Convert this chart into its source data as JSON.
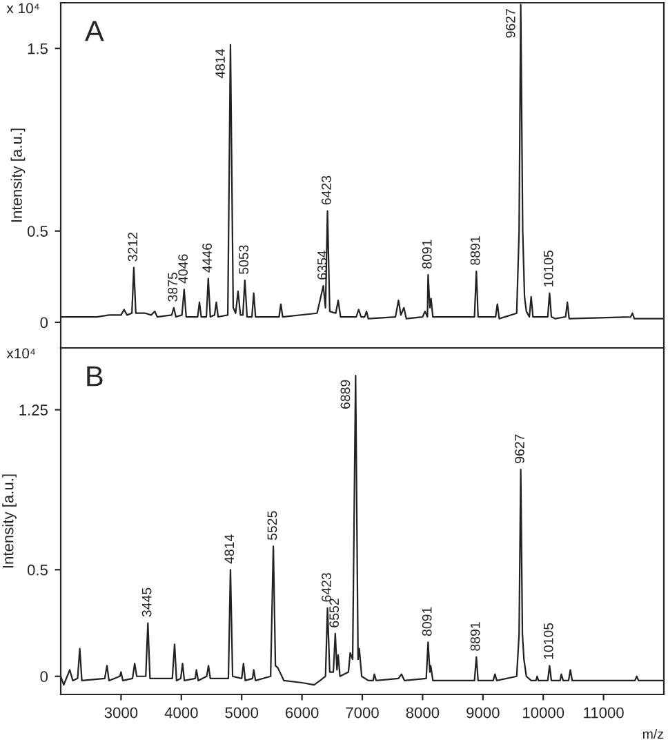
{
  "chart_data": [
    {
      "type": "line",
      "ylabel": "Intensity [a.u.]",
      "xlim": [
        2000,
        12000
      ],
      "ylim": [
        -0.14,
        1.75
      ],
      "yticks": [
        0,
        0.5,
        1.5
      ],
      "tick_labels": "y",
      "grid": false,
      "legend": false,
      "marker": "none",
      "line_style": "solid",
      "annotations": [
        "A",
        "x 10⁴",
        {
          "text": "3212",
          "x": 3212,
          "y": 0.3
        },
        {
          "text": "3875",
          "x": 3875,
          "y": 0.08
        },
        {
          "text": "4046",
          "x": 4046,
          "y": 0.18
        },
        {
          "text": "4446",
          "x": 4446,
          "y": 0.24
        },
        {
          "text": "4814",
          "x": 4814,
          "y": 1.52
        },
        {
          "text": "5053",
          "x": 5053,
          "y": 0.23
        },
        {
          "text": "6354",
          "x": 6354,
          "y": 0.2
        },
        {
          "text": "6423",
          "x": 6423,
          "y": 0.61
        },
        {
          "text": "8091",
          "x": 8091,
          "y": 0.26
        },
        {
          "text": "8891",
          "x": 8891,
          "y": 0.28
        },
        {
          "text": "9627",
          "x": 9627,
          "y": 1.74
        },
        {
          "text": "10105",
          "x": 10105,
          "y": 0.16
        }
      ],
      "series": [
        {
          "color": "#222222",
          "x": [
            2000,
            2600,
            2800,
            3000,
            3050,
            3100,
            3180,
            3212,
            3245,
            3400,
            3500,
            3560,
            3600,
            3840,
            3875,
            3910,
            4010,
            4046,
            4080,
            4270,
            4300,
            4330,
            4415,
            4446,
            4480,
            4550,
            4580,
            4610,
            4770,
            4814,
            4860,
            4900,
            4940,
            4980,
            5020,
            5053,
            5090,
            5170,
            5200,
            5230,
            5620,
            5650,
            5680,
            6250,
            6354,
            6390,
            6423,
            6460,
            6560,
            6600,
            6640,
            6900,
            6940,
            6980,
            7040,
            7070,
            7100,
            7550,
            7600,
            7640,
            7690,
            7730,
            8000,
            8040,
            8080,
            8091,
            8120,
            8140,
            8170,
            8860,
            8891,
            8920,
            9210,
            9240,
            9270,
            9560,
            9600,
            9627,
            9660,
            9690,
            9720,
            9770,
            9800,
            9830,
            10075,
            10105,
            10135,
            10200,
            10370,
            10400,
            10430,
            11450,
            11480,
            11510,
            12000
          ],
          "values": [
            0.03,
            0.03,
            0.04,
            0.04,
            0.07,
            0.04,
            0.05,
            0.3,
            0.05,
            0.05,
            0.04,
            0.06,
            0.03,
            0.04,
            0.08,
            0.03,
            0.04,
            0.18,
            0.03,
            0.03,
            0.11,
            0.03,
            0.03,
            0.24,
            0.03,
            0.04,
            0.11,
            0.03,
            0.04,
            1.52,
            0.08,
            0.05,
            0.17,
            0.04,
            0.04,
            0.23,
            0.03,
            0.03,
            0.16,
            0.03,
            0.03,
            0.1,
            0.03,
            0.05,
            0.2,
            0.08,
            0.61,
            0.06,
            0.05,
            0.12,
            0.03,
            0.03,
            0.07,
            0.03,
            0.03,
            0.06,
            0.02,
            0.03,
            0.12,
            0.04,
            0.08,
            0.02,
            0.03,
            0.06,
            0.03,
            0.26,
            0.08,
            0.13,
            0.03,
            0.03,
            0.28,
            0.03,
            0.03,
            0.1,
            0.02,
            0.05,
            0.5,
            1.74,
            0.5,
            0.14,
            0.06,
            0.03,
            0.14,
            0.03,
            0.03,
            0.16,
            0.03,
            0.02,
            0.03,
            0.11,
            0.02,
            0.03,
            0.05,
            0.02,
            0.02
          ]
        }
      ]
    },
    {
      "type": "line",
      "ylabel": "Intensity [a.u.]",
      "xlabel": "m/z",
      "xlim": [
        2000,
        12000
      ],
      "xticks": [
        3000,
        4000,
        5000,
        6000,
        7000,
        8000,
        9000,
        10000,
        11000
      ],
      "ylim": [
        -0.085,
        1.54
      ],
      "yticks": [
        0,
        0.5,
        1.25
      ],
      "grid": false,
      "legend": false,
      "marker": "none",
      "line_style": "solid",
      "annotations": [
        "B",
        "x10⁴",
        {
          "text": "3445",
          "x": 3445,
          "y": 0.25
        },
        {
          "text": "4814",
          "x": 4814,
          "y": 0.5
        },
        {
          "text": "5525",
          "x": 5525,
          "y": 0.61
        },
        {
          "text": "6423",
          "x": 6423,
          "y": 0.32
        },
        {
          "text": "6552",
          "x": 6552,
          "y": 0.2
        },
        {
          "text": "6889",
          "x": 6889,
          "y": 1.41
        },
        {
          "text": "8091",
          "x": 8091,
          "y": 0.16
        },
        {
          "text": "8891",
          "x": 8891,
          "y": 0.09
        },
        {
          "text": "9627",
          "x": 9627,
          "y": 0.97
        },
        {
          "text": "10105",
          "x": 10105,
          "y": 0.05
        }
      ],
      "series": [
        {
          "color": "#222222",
          "x": [
            2000,
            2050,
            2150,
            2200,
            2280,
            2316,
            2350,
            2730,
            2767,
            2800,
            2980,
            3000,
            3030,
            3190,
            3226,
            3260,
            3410,
            3445,
            3480,
            3850,
            3888,
            3920,
            3990,
            4020,
            4050,
            4230,
            4250,
            4280,
            4420,
            4450,
            4480,
            4780,
            4814,
            4850,
            5000,
            5030,
            5060,
            5180,
            5200,
            5230,
            5480,
            5525,
            5560,
            5600,
            5700,
            6000,
            6200,
            6300,
            6390,
            6423,
            6460,
            6520,
            6552,
            6580,
            6600,
            6630,
            6770,
            6800,
            6840,
            6889,
            6930,
            6950,
            6990,
            7100,
            7180,
            7200,
            7230,
            7600,
            7650,
            7700,
            8060,
            8091,
            8120,
            8135,
            8170,
            8860,
            8891,
            8920,
            9170,
            9200,
            9230,
            9560,
            9600,
            9627,
            9655,
            9680,
            9720,
            9800,
            9880,
            9900,
            9920,
            10075,
            10105,
            10135,
            10280,
            10300,
            10330,
            10420,
            10450,
            10480,
            11520,
            11550,
            11580,
            12000
          ],
          "values": [
            0.0,
            -0.04,
            0.03,
            -0.02,
            -0.01,
            0.13,
            -0.02,
            -0.01,
            0.05,
            -0.02,
            0.0,
            0.02,
            -0.02,
            -0.01,
            0.06,
            0.0,
            0.0,
            0.25,
            -0.01,
            -0.01,
            0.15,
            -0.02,
            -0.01,
            0.06,
            -0.02,
            -0.01,
            0.03,
            -0.02,
            0.0,
            0.05,
            -0.01,
            -0.01,
            0.5,
            0.0,
            -0.01,
            0.06,
            -0.02,
            -0.01,
            0.03,
            -0.02,
            0.0,
            0.61,
            0.05,
            0.04,
            -0.02,
            -0.03,
            -0.04,
            -0.02,
            0.0,
            0.32,
            0.02,
            0.02,
            0.2,
            0.03,
            0.1,
            0.0,
            0.02,
            0.11,
            0.08,
            1.41,
            0.08,
            0.13,
            0.0,
            -0.02,
            -0.02,
            0.01,
            -0.02,
            -0.01,
            0.01,
            -0.02,
            -0.01,
            0.16,
            0.02,
            0.05,
            -0.02,
            -0.02,
            0.09,
            -0.02,
            -0.02,
            0.01,
            -0.02,
            0.0,
            0.2,
            0.97,
            0.2,
            0.08,
            0.0,
            -0.02,
            -0.02,
            0.0,
            -0.02,
            -0.02,
            0.05,
            -0.02,
            -0.02,
            0.01,
            -0.02,
            -0.02,
            0.03,
            -0.02,
            -0.02,
            0.0,
            -0.02,
            -0.02
          ]
        }
      ]
    }
  ]
}
